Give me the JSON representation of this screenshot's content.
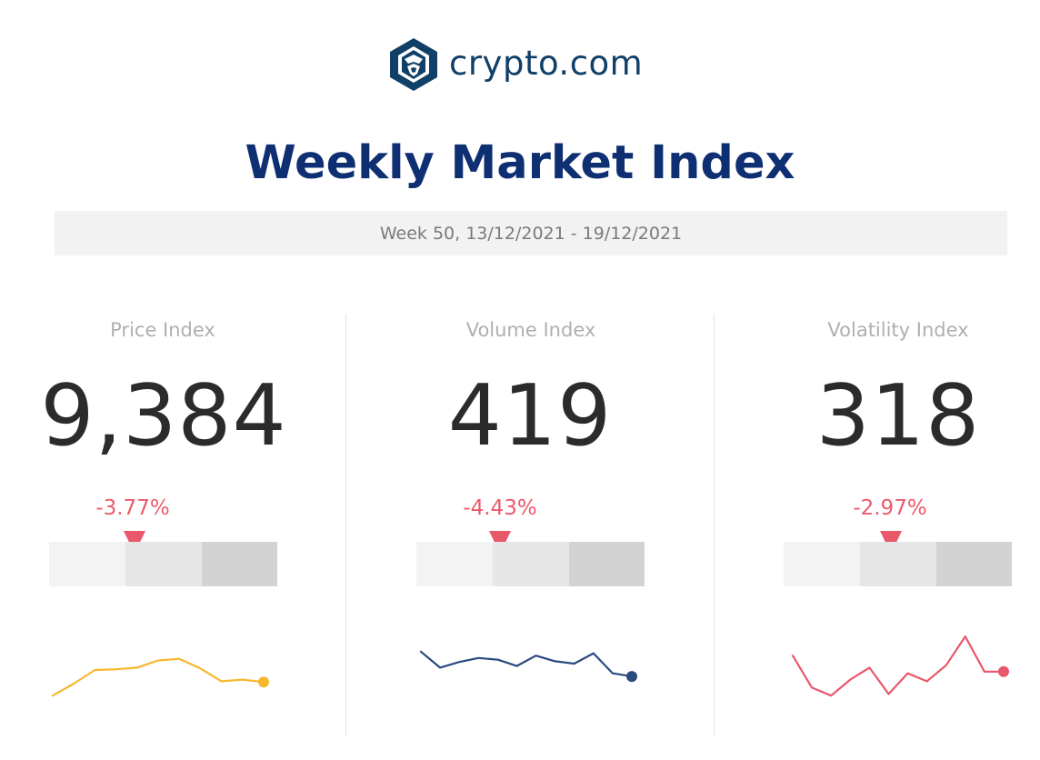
{
  "brand": {
    "name": "crypto.com",
    "logo_icon": "crypto-com-lion-shield-icon",
    "color": "#103F68"
  },
  "header": {
    "title": "Weekly Market Index",
    "week": "Week 50, 13/12/2021 - 19/12/2021"
  },
  "colors": {
    "title": "#0F2F73",
    "negative": "#EC5A6C",
    "price_line": "#F5B82E",
    "volume_line": "#2A4A7F",
    "volatility_line": "#E8576A"
  },
  "indexes": [
    {
      "label": "Price Index",
      "value": "9,384",
      "change": "-3.77%",
      "direction": "down",
      "trend": [
        10,
        25,
        42,
        43,
        45,
        54,
        56,
        44,
        28,
        30,
        27
      ]
    },
    {
      "label": "Volume Index",
      "value": "419",
      "change": "-4.43%",
      "direction": "down",
      "trend": [
        65,
        45,
        52,
        57,
        55,
        47,
        60,
        53,
        50,
        63,
        38,
        34
      ]
    },
    {
      "label": "Volatility Index",
      "value": "318",
      "change": "-2.97%",
      "direction": "down",
      "trend": [
        60,
        20,
        10,
        30,
        45,
        12,
        38,
        28,
        48,
        84,
        40,
        40
      ]
    }
  ]
}
